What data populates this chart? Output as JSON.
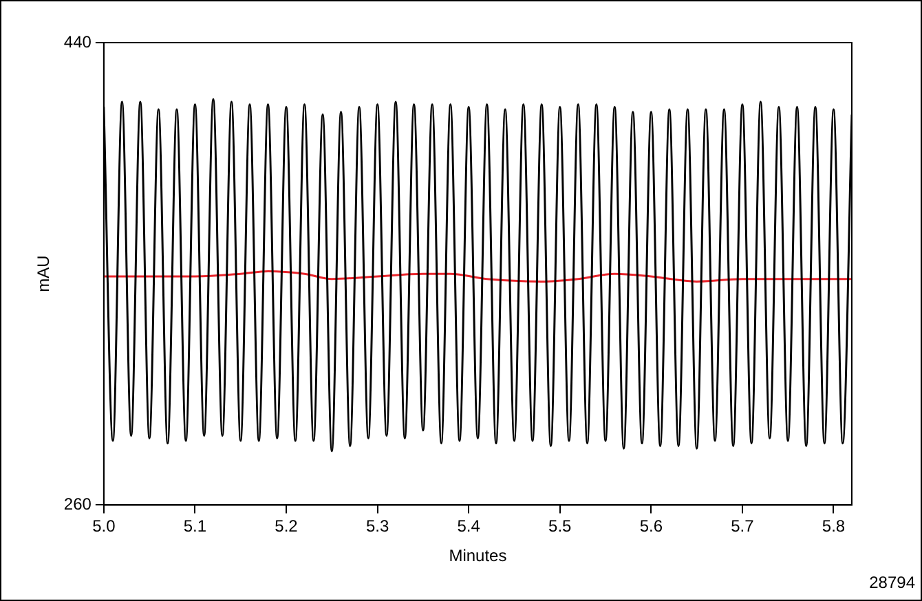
{
  "chart_data": {
    "type": "line",
    "xlabel": "Minutes",
    "ylabel": "mAU",
    "xlim": [
      5.0,
      5.82
    ],
    "xticks": [
      {
        "value": 5.0,
        "label": "5.0"
      },
      5.1,
      5.2,
      5.3,
      5.4,
      5.5,
      5.6,
      5.7,
      5.8
    ],
    "ylim": [
      260,
      440
    ],
    "yticks": [
      260,
      440
    ],
    "grid": false,
    "legend": false,
    "marker": "none",
    "line_style": "solid",
    "annotations": [
      "28794"
    ],
    "series": [
      {
        "color": "#000000",
        "x": [
          5.0,
          5.01,
          5.02,
          5.03,
          5.04,
          5.05,
          5.06,
          5.07,
          5.08,
          5.09,
          5.1,
          5.11,
          5.12,
          5.13,
          5.14,
          5.15,
          5.16,
          5.17,
          5.18,
          5.19,
          5.2,
          5.21,
          5.22,
          5.23,
          5.24,
          5.25,
          5.26,
          5.27,
          5.28,
          5.29,
          5.3,
          5.31,
          5.32,
          5.33,
          5.34,
          5.35,
          5.36,
          5.37,
          5.38,
          5.39,
          5.4,
          5.41,
          5.42,
          5.43,
          5.44,
          5.45,
          5.46,
          5.47,
          5.48,
          5.49,
          5.5,
          5.51,
          5.52,
          5.53,
          5.54,
          5.55,
          5.56,
          5.57,
          5.58,
          5.59,
          5.6,
          5.61,
          5.62,
          5.63,
          5.64,
          5.65,
          5.66,
          5.67,
          5.68,
          5.69,
          5.7,
          5.71,
          5.72,
          5.73,
          5.74,
          5.75,
          5.76,
          5.77,
          5.78,
          5.79,
          5.8,
          5.81,
          5.82
        ],
        "values": [
          415,
          285,
          417,
          287,
          417,
          286,
          414,
          284,
          414,
          285,
          416,
          287,
          418,
          287,
          417,
          285,
          416,
          285,
          416,
          286,
          415,
          285,
          416,
          285,
          412,
          281,
          413,
          283,
          415,
          286,
          416,
          287,
          417,
          286,
          416,
          289,
          416,
          284,
          416,
          285,
          415,
          286,
          416,
          284,
          414,
          285,
          416,
          285,
          416,
          283,
          415,
          285,
          416,
          284,
          416,
          285,
          415,
          282,
          413,
          284,
          413,
          283,
          414,
          283,
          414,
          282,
          414,
          285,
          414,
          283,
          416,
          284,
          417,
          286,
          415,
          285,
          415,
          283,
          415,
          284,
          414,
          284,
          412
        ]
      },
      {
        "color": "#e8242b",
        "x": [
          5.0,
          5.05,
          5.1,
          5.15,
          5.18,
          5.22,
          5.25,
          5.3,
          5.35,
          5.38,
          5.42,
          5.48,
          5.52,
          5.56,
          5.6,
          5.65,
          5.7,
          5.75,
          5.8,
          5.82
        ],
        "values": [
          349,
          349,
          349,
          350,
          351,
          350,
          348,
          349,
          350,
          350,
          348,
          347,
          348,
          350,
          349,
          347,
          348,
          348,
          348,
          348
        ]
      }
    ]
  }
}
